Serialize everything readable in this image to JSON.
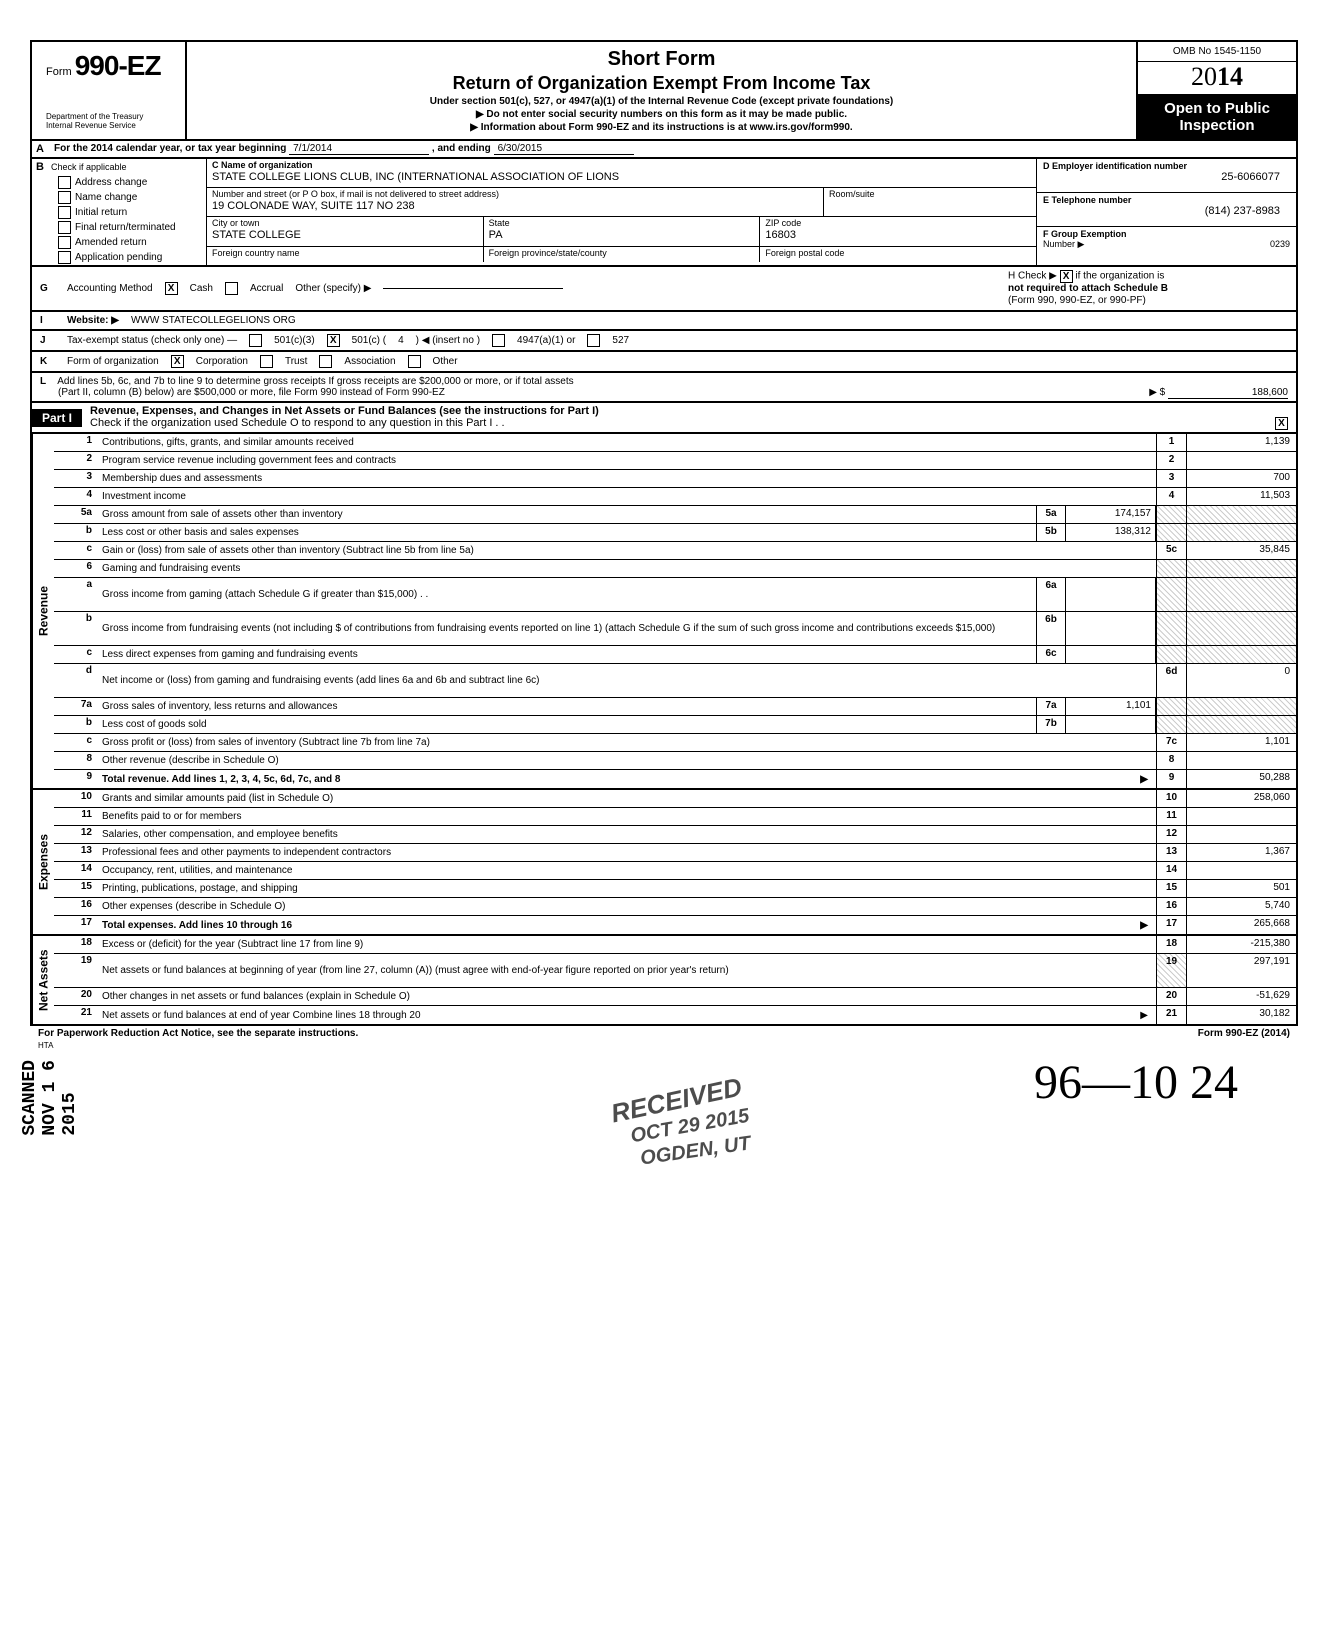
{
  "header": {
    "form_label": "Form",
    "form_number": "990-EZ",
    "dept1": "Department of the Treasury",
    "dept2": "Internal Revenue Service",
    "title1": "Short Form",
    "title2": "Return of Organization Exempt From Income Tax",
    "sub": "Under section 501(c), 527, or 4947(a)(1) of the Internal Revenue Code (except private foundations)",
    "arrow1": "▶ Do not enter social security numbers on this form as it may be made public.",
    "arrow2": "▶ Information about Form 990-EZ and its instructions is at www.irs.gov/form990.",
    "omb": "OMB No 1545-1150",
    "year_prefix": "20",
    "year_bold": "14",
    "open1": "Open to Public",
    "open2": "Inspection"
  },
  "rowA": {
    "label": "A",
    "text": "For the 2014 calendar year, or tax year beginning",
    "begin": "7/1/2014",
    "mid": ", and ending",
    "end": "6/30/2015"
  },
  "rowB": {
    "label": "B",
    "check_label": "Check if applicable",
    "checks": [
      "Address change",
      "Name change",
      "Initial return",
      "Final return/terminated",
      "Amended return",
      "Application pending"
    ],
    "c_label": "C Name of organization",
    "org_name": "STATE COLLEGE LIONS CLUB, INC (INTERNATIONAL ASSOCIATION OF LIONS",
    "addr_label": "Number and street (or P O box, if mail is not delivered to street address)",
    "room_label": "Room/suite",
    "addr": "19 COLONADE WAY, SUITE 117  NO 238",
    "city_label": "City or town",
    "city": "STATE COLLEGE",
    "state_label": "State",
    "state": "PA",
    "zip_label": "ZIP code",
    "zip": "16803",
    "foreign_country_label": "Foreign country name",
    "foreign_prov_label": "Foreign province/state/county",
    "foreign_postal_label": "Foreign postal code",
    "d_label": "D Employer identification number",
    "ein": "25-6066077",
    "e_label": "E Telephone number",
    "phone": "(814) 237-8983",
    "f_label": "F Group Exemption",
    "f_label2": "Number ▶",
    "group": "0239"
  },
  "rowG": {
    "label": "G",
    "acct": "Accounting Method",
    "cash": "Cash",
    "accrual": "Accrual",
    "other": "Other (specify) ▶",
    "h_text": "H  Check ▶",
    "h_after": "if the organization is",
    "h_line2": "not required to attach Schedule B",
    "h_line3": "(Form 990, 990-EZ, or 990-PF)"
  },
  "rowI": {
    "label": "I",
    "website_label": "Website: ▶",
    "website": "WWW STATECOLLEGELIONS ORG"
  },
  "rowJ": {
    "label": "J",
    "text": "Tax-exempt status (check only one) —",
    "c3": "501(c)(3)",
    "c": "501(c) (",
    "c_num": "4",
    "c_after": ") ◀ (insert no )",
    "a1": "4947(a)(1) or",
    "s527": "527"
  },
  "rowK": {
    "label": "K",
    "text": "Form of organization",
    "corp": "Corporation",
    "trust": "Trust",
    "assoc": "Association",
    "other": "Other"
  },
  "rowL": {
    "label": "L",
    "text1": "Add lines 5b, 6c, and 7b to line 9 to determine gross receipts  If gross receipts are $200,000 or more, or if total assets",
    "text2": "(Part II, column (B) below) are $500,000 or more, file Form 990 instead of Form 990-EZ",
    "arrow": "▶ $",
    "amount": "188,600"
  },
  "part1": {
    "tag": "Part I",
    "title": "Revenue, Expenses, and Changes in Net Assets or Fund Balances (see the instructions for Part I)",
    "sub": "Check if the organization used Schedule O to respond to any question in this Part I  .  .",
    "sub_checked": "X"
  },
  "vtabs": {
    "revenue": "Revenue",
    "expenses": "Expenses",
    "netassets": "Net Assets"
  },
  "lines": [
    {
      "n": "1",
      "desc": "Contributions, gifts, grants, and similar amounts received",
      "rn": "1",
      "val": "1,139"
    },
    {
      "n": "2",
      "desc": "Program service revenue including government fees and contracts",
      "rn": "2",
      "val": ""
    },
    {
      "n": "3",
      "desc": "Membership dues and assessments",
      "rn": "3",
      "val": "700"
    },
    {
      "n": "4",
      "desc": "Investment income",
      "rn": "4",
      "val": "11,503"
    },
    {
      "n": "5a",
      "desc": "Gross amount from sale of assets other than inventory",
      "in": "5a",
      "iv": "174,157",
      "shade": true
    },
    {
      "n": "b",
      "desc": "Less  cost or other basis and sales expenses",
      "in": "5b",
      "iv": "138,312",
      "shade": true
    },
    {
      "n": "c",
      "desc": "Gain or (loss) from sale of assets other than inventory (Subtract line 5b from line 5a)",
      "rn": "5c",
      "val": "35,845"
    },
    {
      "n": "6",
      "desc": "Gaming and fundraising events",
      "shade": true
    },
    {
      "n": "a",
      "desc": "Gross income from gaming (attach Schedule G if greater than $15,000)    .    .",
      "in": "6a",
      "iv": "",
      "shade": true,
      "tall": true
    },
    {
      "n": "b",
      "desc": "Gross income from fundraising events (not including      $                 of contributions from fundraising events reported on line 1) (attach Schedule G if the sum of such gross income and contributions exceeds $15,000)",
      "in": "6b",
      "iv": "",
      "shade": true,
      "tall": true
    },
    {
      "n": "c",
      "desc": "Less  direct expenses from gaming and fundraising events",
      "in": "6c",
      "iv": "",
      "shade": true
    },
    {
      "n": "d",
      "desc": "Net income or (loss) from gaming and fundraising events (add lines 6a and 6b and subtract line 6c)",
      "rn": "6d",
      "val": "0",
      "tall": true
    },
    {
      "n": "7a",
      "desc": "Gross sales of inventory, less returns and allowances",
      "in": "7a",
      "iv": "1,101",
      "shade": true
    },
    {
      "n": "b",
      "desc": "Less  cost of goods sold",
      "in": "7b",
      "iv": "",
      "shade": true
    },
    {
      "n": "c",
      "desc": "Gross profit or (loss) from sales of inventory (Subtract line 7b from line 7a)",
      "rn": "7c",
      "val": "1,101"
    },
    {
      "n": "8",
      "desc": "Other revenue (describe in Schedule O)",
      "rn": "8",
      "val": ""
    },
    {
      "n": "9",
      "desc": "Total revenue. Add lines 1, 2, 3, 4, 5c, 6d, 7c, and 8",
      "rn": "9",
      "val": "50,288",
      "bold": true,
      "arrow": true
    }
  ],
  "exp_lines": [
    {
      "n": "10",
      "desc": "Grants and similar amounts paid (list in Schedule O)",
      "rn": "10",
      "val": "258,060"
    },
    {
      "n": "11",
      "desc": "Benefits paid to or for members",
      "rn": "11",
      "val": ""
    },
    {
      "n": "12",
      "desc": "Salaries, other compensation, and employee benefits",
      "rn": "12",
      "val": ""
    },
    {
      "n": "13",
      "desc": "Professional fees and other payments to independent contractors",
      "rn": "13",
      "val": "1,367"
    },
    {
      "n": "14",
      "desc": "Occupancy, rent, utilities, and maintenance",
      "rn": "14",
      "val": ""
    },
    {
      "n": "15",
      "desc": "Printing, publications, postage, and shipping",
      "rn": "15",
      "val": "501"
    },
    {
      "n": "16",
      "desc": "Other expenses (describe in Schedule O)",
      "rn": "16",
      "val": "5,740"
    },
    {
      "n": "17",
      "desc": "Total expenses. Add lines 10 through 16",
      "rn": "17",
      "val": "265,668",
      "bold": true,
      "arrow": true
    }
  ],
  "na_lines": [
    {
      "n": "18",
      "desc": "Excess or (deficit) for the year (Subtract line 17 from line 9)",
      "rn": "18",
      "val": "-215,380"
    },
    {
      "n": "19",
      "desc": "Net assets or fund balances at beginning of year (from line 27, column (A)) (must agree with end-of-year figure reported on prior year's return)",
      "rn": "19",
      "val": "297,191",
      "tall": true,
      "shadetop": true
    },
    {
      "n": "20",
      "desc": "Other changes in net assets or fund balances (explain in Schedule O)",
      "rn": "20",
      "val": "-51,629"
    },
    {
      "n": "21",
      "desc": "Net assets or fund balances at end of year  Combine lines 18 through 20",
      "rn": "21",
      "val": "30,182",
      "arrow": true
    }
  ],
  "footer": {
    "left": "For Paperwork Reduction Act Notice, see the separate instructions.",
    "hta": "HTA",
    "right": "Form 990-EZ (2014)"
  },
  "stamps": {
    "recv": "RECEIVED",
    "date": "OCT 29 2015",
    "loc": "OGDEN, UT",
    "side": "SCANNED NOV 1 6 2015",
    "script": "96—10  24"
  }
}
